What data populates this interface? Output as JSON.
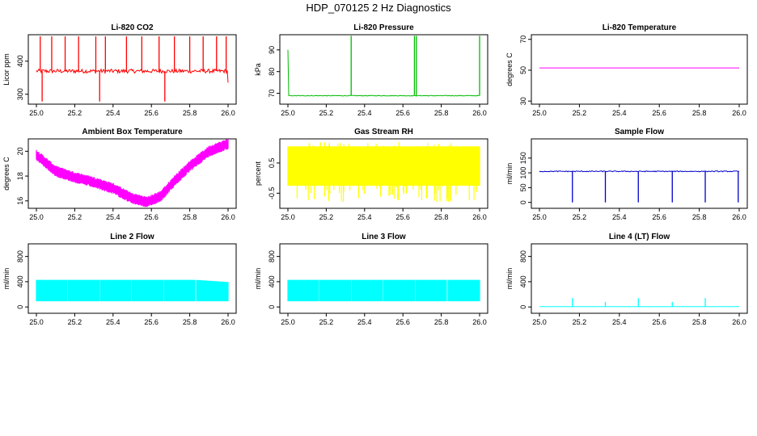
{
  "page_title": "HDP_070125  2 Hz Diagnostics",
  "chart_data": [
    {
      "type": "line",
      "title": "Li-820 CO2",
      "ylabel": "Licor ppm",
      "color": "#ff0000",
      "xlim": [
        25.0,
        26.0
      ],
      "ylim": [
        270,
        480
      ],
      "xticks": [
        25.0,
        25.2,
        25.4,
        25.6,
        25.8,
        26.0
      ],
      "xtick_labels": [
        "25.0",
        "25.2",
        "25.4",
        "25.6",
        "25.8",
        "26.0"
      ],
      "yticks": [
        300,
        400
      ],
      "ytick_labels": [
        "300",
        "400"
      ],
      "series": [
        {
          "baseline": 370,
          "noise": 6,
          "spikes_up": [
            25.02,
            25.08,
            25.15,
            25.22,
            25.31,
            25.36,
            25.47,
            25.55,
            25.64,
            25.72,
            25.8,
            25.87,
            25.94,
            25.99
          ],
          "spike_top": 475,
          "spikes_down": [
            25.03,
            25.33,
            25.67
          ],
          "spike_bottom": 278,
          "end_y": 335
        }
      ]
    },
    {
      "type": "line",
      "title": "Li-820 Pressure",
      "ylabel": "kPa",
      "color": "#00bb00",
      "xlim": [
        25.0,
        26.0
      ],
      "ylim": [
        65,
        97
      ],
      "xticks": [
        25.0,
        25.2,
        25.4,
        25.6,
        25.8,
        26.0
      ],
      "xtick_labels": [
        "25.0",
        "25.2",
        "25.4",
        "25.6",
        "25.8",
        "26.0"
      ],
      "yticks": [
        70,
        80,
        90
      ],
      "ytick_labels": [
        "70",
        "80",
        "90"
      ],
      "series": [
        {
          "baseline": 68.9,
          "noise": 0.15,
          "spikes_up": [
            25.33,
            25.66,
            25.67,
            26.0
          ],
          "spike_top": 96.5,
          "start_y": 90
        }
      ]
    },
    {
      "type": "line",
      "title": "Li-820 Temperature",
      "ylabel": "degrees C",
      "color": "#ff00ff",
      "xlim": [
        25.0,
        26.0
      ],
      "ylim": [
        28,
        73
      ],
      "xticks": [
        25.0,
        25.2,
        25.4,
        25.6,
        25.8,
        26.0
      ],
      "xtick_labels": [
        "25.0",
        "25.2",
        "25.4",
        "25.6",
        "25.8",
        "26.0"
      ],
      "yticks": [
        30,
        50,
        70
      ],
      "ytick_labels": [
        "30",
        "50",
        "70"
      ],
      "series": [
        {
          "baseline": 51.5,
          "noise": 0
        }
      ]
    },
    {
      "type": "line",
      "title": "Ambient Box Temperature",
      "ylabel": "degrees C",
      "color": "#ff00ff",
      "xlim": [
        25.0,
        26.0
      ],
      "ylim": [
        15.4,
        21.0
      ],
      "xticks": [
        25.0,
        25.2,
        25.4,
        25.6,
        25.8,
        26.0
      ],
      "xtick_labels": [
        "25.0",
        "25.2",
        "25.4",
        "25.6",
        "25.8",
        "26.0"
      ],
      "yticks": [
        16,
        18,
        20
      ],
      "ytick_labels": [
        "16",
        "18",
        "20"
      ],
      "series": [
        {
          "curve": [
            [
              25.0,
              19.7
            ],
            [
              25.1,
              18.4
            ],
            [
              25.2,
              17.9
            ],
            [
              25.3,
              17.5
            ],
            [
              25.4,
              17.0
            ],
            [
              25.5,
              16.2
            ],
            [
              25.58,
              15.9
            ],
            [
              25.65,
              16.4
            ],
            [
              25.72,
              17.6
            ],
            [
              25.8,
              18.8
            ],
            [
              25.9,
              20.0
            ],
            [
              26.0,
              20.6
            ]
          ],
          "band": 0.9
        }
      ]
    },
    {
      "type": "area",
      "title": "Gas Stream RH",
      "ylabel": "percent",
      "color": "#ffff00",
      "xlim": [
        25.0,
        26.0
      ],
      "ylim": [
        -1.0,
        1.3
      ],
      "xticks": [
        25.0,
        25.2,
        25.4,
        25.6,
        25.8,
        26.0
      ],
      "xtick_labels": [
        "25.0",
        "25.2",
        "25.4",
        "25.6",
        "25.8",
        "26.0"
      ],
      "yticks": [
        -0.5,
        0.5
      ],
      "ytick_labels": [
        "-0.5",
        "0.5"
      ],
      "series": [
        {
          "band_low": -0.25,
          "band_high": 1.05,
          "spike_low": -0.8,
          "spike_high": 1.2
        }
      ]
    },
    {
      "type": "line",
      "title": "Sample Flow",
      "ylabel": "ml/min",
      "color": "#0000cc",
      "xlim": [
        25.0,
        26.0
      ],
      "ylim": [
        -20,
        215
      ],
      "xticks": [
        25.0,
        25.2,
        25.4,
        25.6,
        25.8,
        26.0
      ],
      "xtick_labels": [
        "25.0",
        "25.2",
        "25.4",
        "25.6",
        "25.8",
        "26.0"
      ],
      "yticks": [
        0,
        50,
        100,
        150
      ],
      "ytick_labels": [
        "0",
        "50",
        "100",
        "150"
      ],
      "series": [
        {
          "baseline": 105,
          "noise": 1.5,
          "spikes_down": [
            25.165,
            25.33,
            25.495,
            25.665,
            25.83,
            25.995
          ],
          "spike_bottom": 0
        }
      ]
    },
    {
      "type": "area",
      "title": "Line 2 Flow",
      "ylabel": "ml/min",
      "color": "#00ffff",
      "xlim": [
        25.0,
        26.0
      ],
      "ylim": [
        -100,
        1000
      ],
      "xticks": [
        25.0,
        25.2,
        25.4,
        25.6,
        25.8,
        26.0
      ],
      "xtick_labels": [
        "25.0",
        "25.2",
        "25.4",
        "25.6",
        "25.8",
        "26.0"
      ],
      "yticks": [
        0,
        400,
        800
      ],
      "ytick_labels": [
        "0",
        "400",
        "800"
      ],
      "series": [
        {
          "band_low": 90,
          "band_high": 430,
          "band_high_end": 395,
          "gaps": [
            25.163,
            25.33,
            25.497,
            25.664,
            25.831
          ]
        }
      ]
    },
    {
      "type": "area",
      "title": "Line 3 Flow",
      "ylabel": "ml/min",
      "color": "#00ffff",
      "xlim": [
        25.0,
        26.0
      ],
      "ylim": [
        -100,
        1000
      ],
      "xticks": [
        25.0,
        25.2,
        25.4,
        25.6,
        25.8,
        26.0
      ],
      "xtick_labels": [
        "25.0",
        "25.2",
        "25.4",
        "25.6",
        "25.8",
        "26.0"
      ],
      "yticks": [
        0,
        400,
        800
      ],
      "ytick_labels": [
        "0",
        "400",
        "800"
      ],
      "series": [
        {
          "band_low": 90,
          "band_high": 430,
          "band_high_end": 430,
          "gaps": [
            25.163,
            25.33,
            25.497,
            25.664,
            25.831
          ]
        }
      ]
    },
    {
      "type": "line",
      "title": "Line 4 (LT) Flow",
      "ylabel": "ml/min",
      "color": "#00ffff",
      "xlim": [
        25.0,
        26.0
      ],
      "ylim": [
        -100,
        1000
      ],
      "xticks": [
        25.0,
        25.2,
        25.4,
        25.6,
        25.8,
        26.0
      ],
      "xtick_labels": [
        "25.0",
        "25.2",
        "25.4",
        "25.6",
        "25.8",
        "26.0"
      ],
      "yticks": [
        0,
        400,
        800
      ],
      "ytick_labels": [
        "0",
        "400",
        "800"
      ],
      "series": [
        {
          "baseline": 5,
          "noise": 1,
          "spikes_up": [
            25.165,
            25.33,
            25.495,
            25.665,
            25.83
          ],
          "spike_heights": [
            140,
            80,
            140,
            80,
            140
          ]
        }
      ]
    }
  ]
}
